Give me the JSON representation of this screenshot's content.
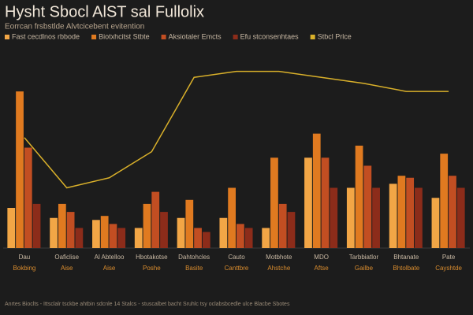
{
  "chart_data": {
    "type": "bar",
    "title": "Hysht Sbocl AlST sal Fullolix",
    "subtitle": "Eorrcan frsbstlde Alvtcicebent evitention",
    "categories": [
      "Dau",
      "Oaficlise",
      "Al Abtelloo",
      "Hbotakotse",
      "Dahtohcles",
      "Cauto",
      "Motbhote",
      "MDO",
      "Tarbbiatlor",
      "Bhtanate",
      "Pate"
    ],
    "sublabels": [
      "Bokbing",
      "Aise",
      "Aise",
      "Poshe",
      "Basite",
      "Canttbre",
      "Ahstche",
      "Aftse",
      "Gailbe",
      "Bhtolbate",
      "Cayshtde"
    ],
    "ylim": [
      0,
      100
    ],
    "series": [
      {
        "name": "Fast cecdlnos rbbode",
        "color": "#f2a646",
        "values": [
          20,
          15,
          14,
          10,
          15,
          15,
          10,
          45,
          30,
          32,
          25
        ]
      },
      {
        "name": "Biotxhcitst Stbte",
        "color": "#e07a20",
        "values": [
          78,
          22,
          16,
          22,
          24,
          30,
          45,
          57,
          51,
          36,
          47
        ]
      },
      {
        "name": "Aksiotaler Emcts",
        "color": "#c24e22",
        "values": [
          50,
          18,
          12,
          28,
          10,
          12,
          22,
          45,
          41,
          35,
          36
        ]
      },
      {
        "name": "Efu stconsenhtaes",
        "color": "#8c2c1a",
        "values": [
          22,
          10,
          10,
          18,
          8,
          10,
          18,
          30,
          30,
          30,
          30
        ]
      },
      {
        "name": "Stbcl Prlce",
        "color": "#d9b02a",
        "type": "line",
        "values": [
          55,
          30,
          35,
          48,
          85,
          88,
          88,
          85,
          82,
          78,
          78
        ]
      }
    ],
    "footnote": "Anrtes Bioclts - Ittsclalr tsckbe ahtbin sdcnle 14 Stalcs - stuscalbet bacht Sruhlc tsy oclabsbcedle ulce Blacbe Sbotes"
  }
}
